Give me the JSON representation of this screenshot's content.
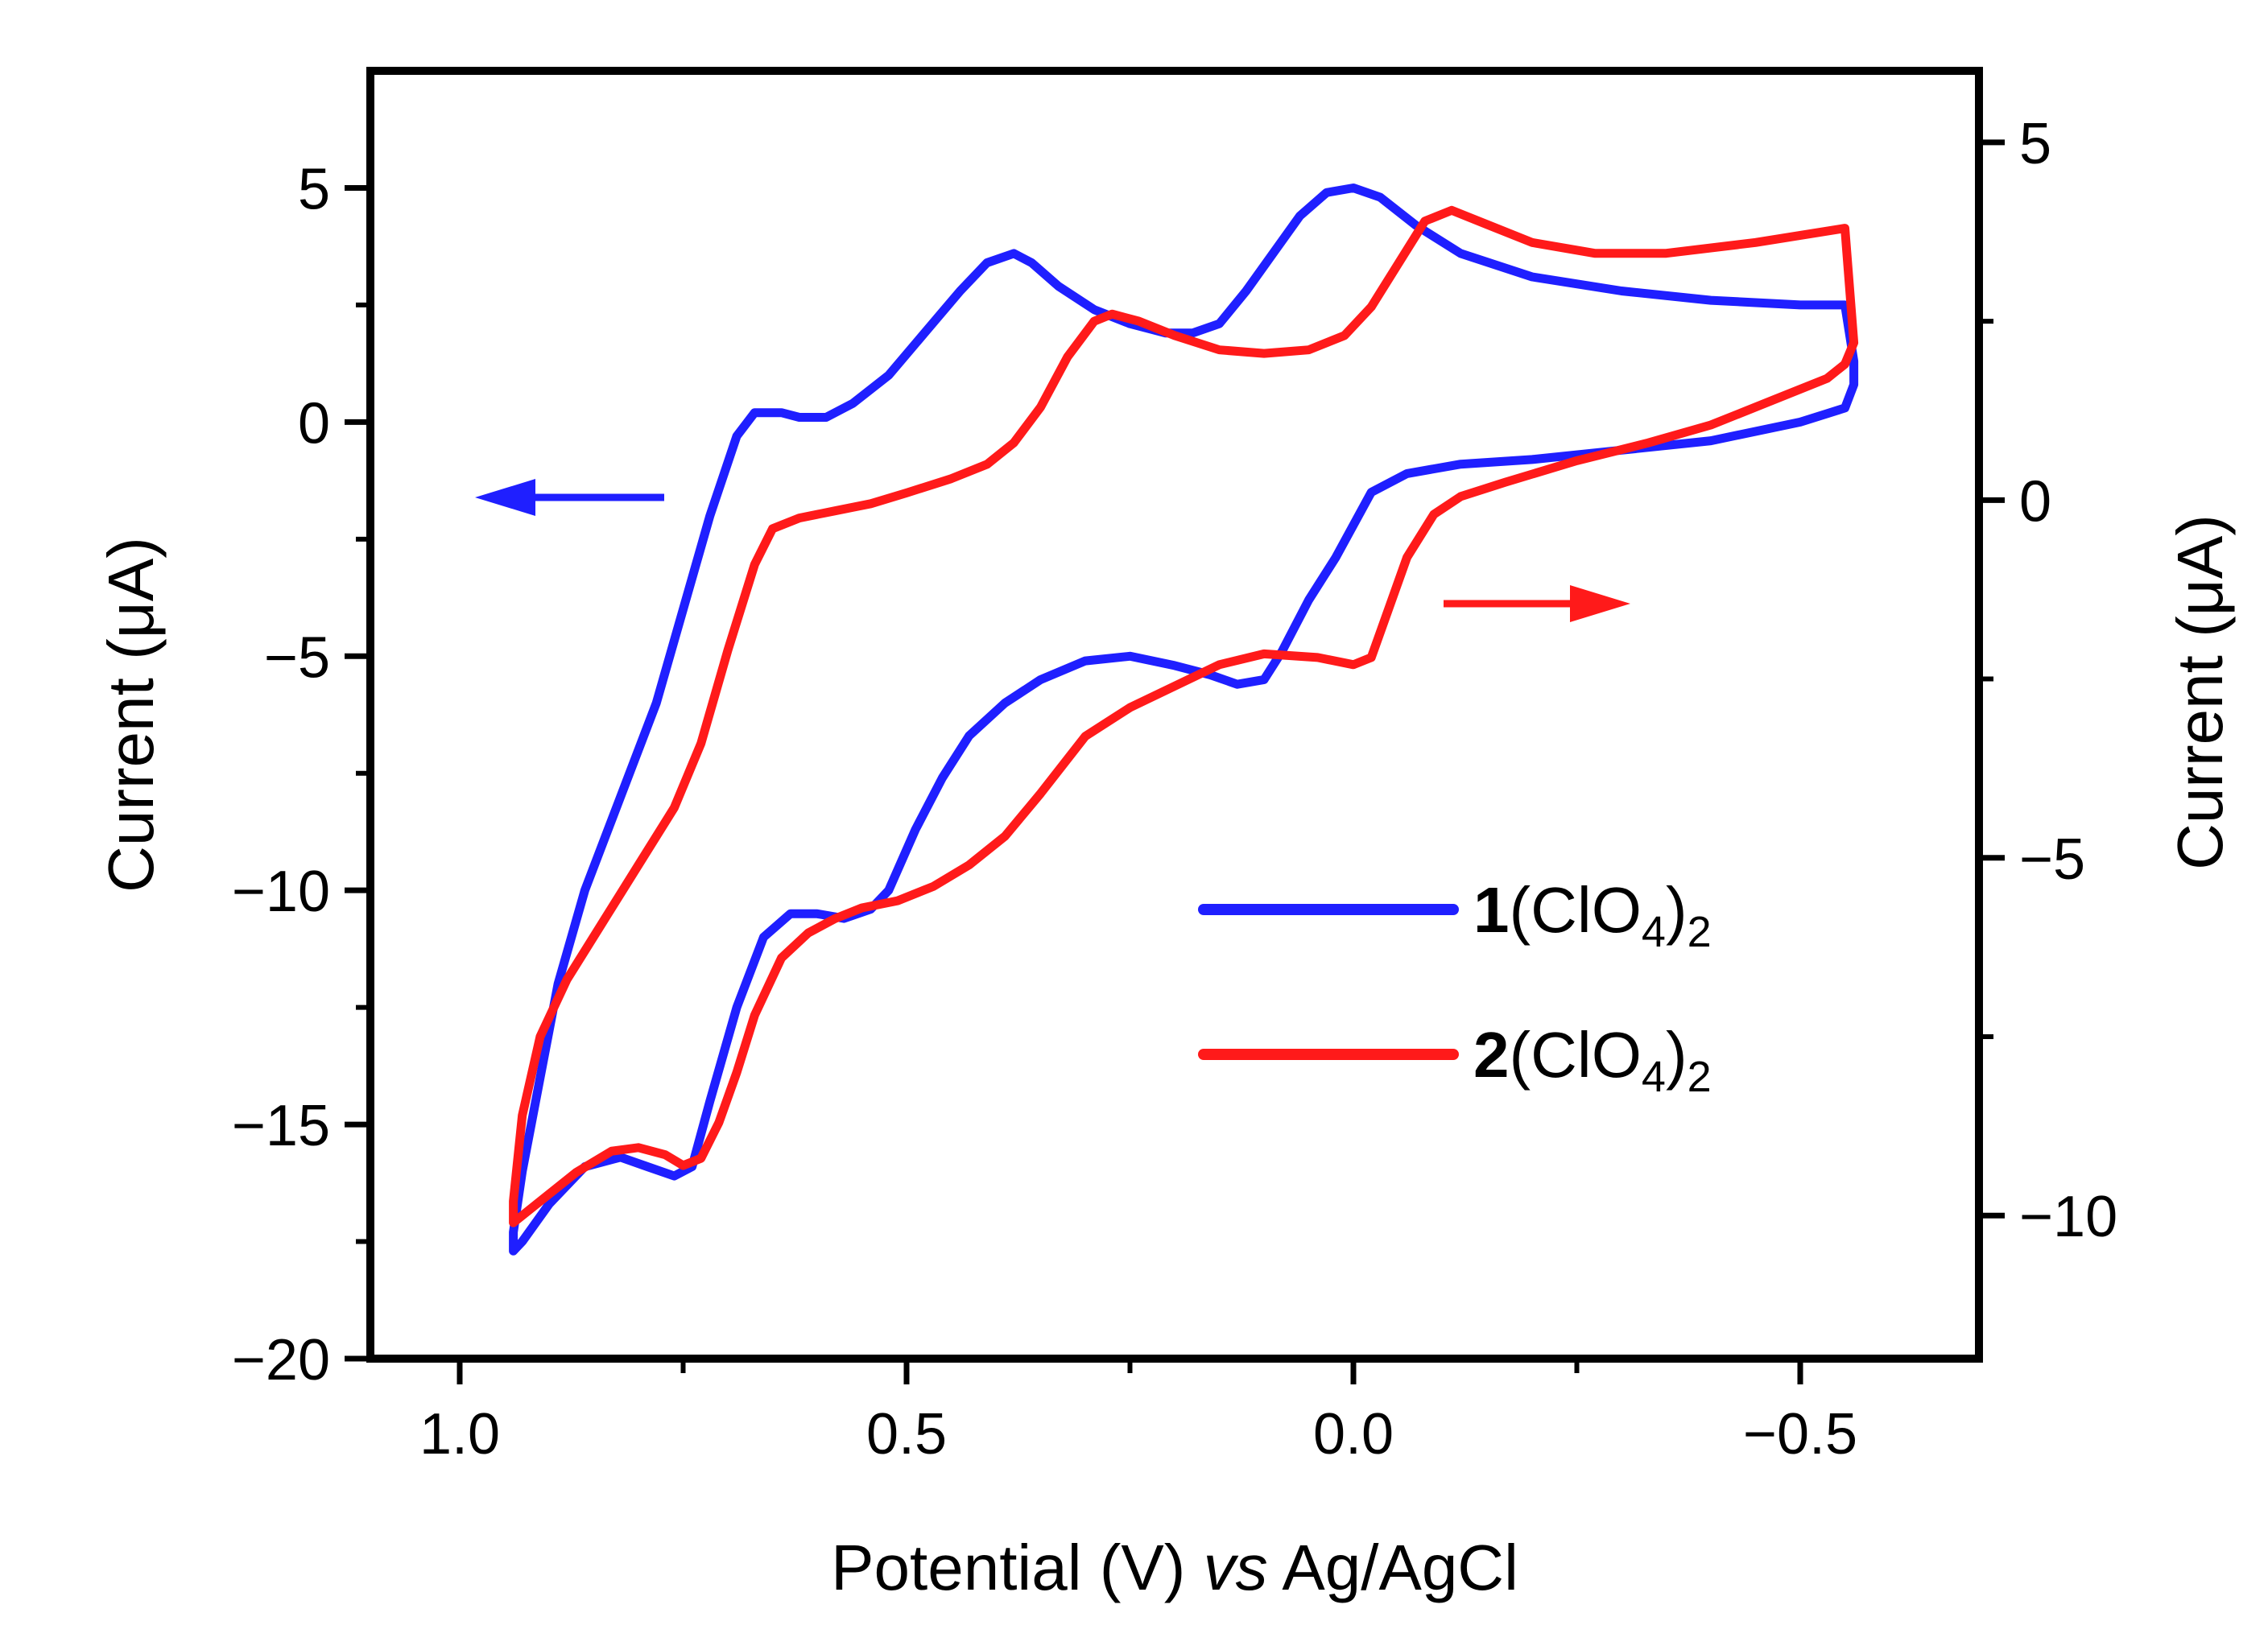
{
  "chart_data": {
    "type": "line",
    "title": "",
    "xlabel": {
      "prefix": "Potential (V) ",
      "italic": "vs",
      "suffix": " Ag/AgCl"
    },
    "ylabel_left": "Current (μA)",
    "ylabel_right": "Current (μA)",
    "x_axis": {
      "min": 1.1,
      "max": -0.7,
      "reversed": true,
      "major_ticks": [
        1.0,
        0.5,
        0.0,
        -0.5
      ],
      "tick_labels": [
        "1.0",
        "0.5",
        "0.0",
        "−0.5"
      ],
      "minor_ticks": [
        0.75,
        0.25,
        -0.25
      ]
    },
    "y_left": {
      "min": -20,
      "max": 7.5,
      "major_ticks": [
        5,
        0,
        -5,
        -10,
        -15,
        -20
      ],
      "tick_labels": [
        "5",
        "0",
        "−5",
        "−10",
        "−15",
        "−20"
      ],
      "minor_ticks": [
        2.5,
        -2.5,
        -7.5,
        -12.5,
        -17.5
      ]
    },
    "y_right": {
      "min": -12,
      "max": 6,
      "major_ticks": [
        5,
        0,
        -5,
        -10
      ],
      "tick_labels": [
        "5",
        "0",
        "−5",
        "−10"
      ],
      "minor_ticks": [
        2.5,
        -2.5,
        -7.5
      ]
    },
    "legend": {
      "placement": "lower-right inside"
    },
    "arrows": [
      {
        "series": "1(ClO4)2",
        "direction": "left",
        "meaning": "left axis",
        "color": "#1f1fff"
      },
      {
        "series": "2(ClO4)2",
        "direction": "right",
        "meaning": "right axis",
        "color": "#ff1a1a"
      }
    ],
    "series": [
      {
        "name": "1(ClO4)2",
        "label_bold": "1",
        "label_rest": "(ClO",
        "label_sub1": "4",
        "label_close": ")",
        "label_sub2": "2",
        "axis": "left",
        "color": "#1f1fff",
        "points": [
          [
            0.94,
            -17.7
          ],
          [
            0.94,
            -17.3
          ],
          [
            0.93,
            -16.0
          ],
          [
            0.91,
            -14.0
          ],
          [
            0.89,
            -12.0
          ],
          [
            0.86,
            -10.0
          ],
          [
            0.82,
            -8.0
          ],
          [
            0.78,
            -6.0
          ],
          [
            0.75,
            -4.0
          ],
          [
            0.72,
            -2.0
          ],
          [
            0.69,
            -0.3
          ],
          [
            0.67,
            0.2
          ],
          [
            0.64,
            0.2
          ],
          [
            0.62,
            0.1
          ],
          [
            0.59,
            0.1
          ],
          [
            0.56,
            0.4
          ],
          [
            0.52,
            1.0
          ],
          [
            0.48,
            1.9
          ],
          [
            0.44,
            2.8
          ],
          [
            0.41,
            3.4
          ],
          [
            0.38,
            3.6
          ],
          [
            0.36,
            3.4
          ],
          [
            0.33,
            2.9
          ],
          [
            0.29,
            2.4
          ],
          [
            0.25,
            2.1
          ],
          [
            0.21,
            1.9
          ],
          [
            0.18,
            1.9
          ],
          [
            0.15,
            2.1
          ],
          [
            0.12,
            2.8
          ],
          [
            0.09,
            3.6
          ],
          [
            0.06,
            4.4
          ],
          [
            0.03,
            4.9
          ],
          [
            0.0,
            5.0
          ],
          [
            -0.03,
            4.8
          ],
          [
            -0.07,
            4.2
          ],
          [
            -0.12,
            3.6
          ],
          [
            -0.2,
            3.1
          ],
          [
            -0.3,
            2.8
          ],
          [
            -0.4,
            2.6
          ],
          [
            -0.5,
            2.5
          ],
          [
            -0.55,
            2.5
          ],
          [
            -0.56,
            1.3
          ],
          [
            -0.56,
            0.8
          ],
          [
            -0.55,
            0.3
          ],
          [
            -0.5,
            0.0
          ],
          [
            -0.4,
            -0.4
          ],
          [
            -0.3,
            -0.6
          ],
          [
            -0.2,
            -0.8
          ],
          [
            -0.12,
            -0.9
          ],
          [
            -0.06,
            -1.1
          ],
          [
            -0.02,
            -1.5
          ],
          [
            0.0,
            -2.2
          ],
          [
            0.02,
            -2.9
          ],
          [
            0.05,
            -3.8
          ],
          [
            0.08,
            -4.9
          ],
          [
            0.1,
            -5.5
          ],
          [
            0.13,
            -5.6
          ],
          [
            0.16,
            -5.4
          ],
          [
            0.2,
            -5.2
          ],
          [
            0.25,
            -5.0
          ],
          [
            0.3,
            -5.1
          ],
          [
            0.35,
            -5.5
          ],
          [
            0.39,
            -6.0
          ],
          [
            0.43,
            -6.7
          ],
          [
            0.46,
            -7.6
          ],
          [
            0.49,
            -8.7
          ],
          [
            0.52,
            -10.0
          ],
          [
            0.54,
            -10.4
          ],
          [
            0.57,
            -10.6
          ],
          [
            0.6,
            -10.5
          ],
          [
            0.63,
            -10.5
          ],
          [
            0.66,
            -11.0
          ],
          [
            0.69,
            -12.5
          ],
          [
            0.72,
            -14.5
          ],
          [
            0.74,
            -15.9
          ],
          [
            0.76,
            -16.1
          ],
          [
            0.79,
            -15.9
          ],
          [
            0.82,
            -15.7
          ],
          [
            0.86,
            -15.9
          ],
          [
            0.9,
            -16.7
          ],
          [
            0.93,
            -17.5
          ],
          [
            0.94,
            -17.7
          ]
        ]
      },
      {
        "name": "2(ClO4)2",
        "label_bold": "2",
        "label_rest": "(ClO",
        "label_sub1": "4",
        "label_close": ")",
        "label_sub2": "2",
        "axis": "right",
        "color": "#ff1a1a",
        "points": [
          [
            0.94,
            -10.1
          ],
          [
            0.94,
            -9.8
          ],
          [
            0.93,
            -8.6
          ],
          [
            0.91,
            -7.5
          ],
          [
            0.88,
            -6.7
          ],
          [
            0.84,
            -5.9
          ],
          [
            0.8,
            -5.1
          ],
          [
            0.76,
            -4.3
          ],
          [
            0.73,
            -3.4
          ],
          [
            0.7,
            -2.1
          ],
          [
            0.67,
            -0.9
          ],
          [
            0.65,
            -0.4
          ],
          [
            0.62,
            -0.25
          ],
          [
            0.58,
            -0.15
          ],
          [
            0.54,
            -0.05
          ],
          [
            0.5,
            0.1
          ],
          [
            0.45,
            0.3
          ],
          [
            0.41,
            0.5
          ],
          [
            0.38,
            0.8
          ],
          [
            0.35,
            1.3
          ],
          [
            0.32,
            2.0
          ],
          [
            0.29,
            2.5
          ],
          [
            0.27,
            2.6
          ],
          [
            0.24,
            2.5
          ],
          [
            0.2,
            2.3
          ],
          [
            0.15,
            2.1
          ],
          [
            0.1,
            2.05
          ],
          [
            0.05,
            2.1
          ],
          [
            0.01,
            2.3
          ],
          [
            -0.02,
            2.7
          ],
          [
            -0.05,
            3.3
          ],
          [
            -0.08,
            3.9
          ],
          [
            -0.11,
            4.05
          ],
          [
            -0.15,
            3.85
          ],
          [
            -0.2,
            3.6
          ],
          [
            -0.27,
            3.45
          ],
          [
            -0.35,
            3.45
          ],
          [
            -0.45,
            3.6
          ],
          [
            -0.55,
            3.8
          ],
          [
            -0.56,
            2.2
          ],
          [
            -0.55,
            1.9
          ],
          [
            -0.53,
            1.7
          ],
          [
            -0.47,
            1.4
          ],
          [
            -0.4,
            1.05
          ],
          [
            -0.33,
            0.8
          ],
          [
            -0.25,
            0.55
          ],
          [
            -0.17,
            0.25
          ],
          [
            -0.12,
            0.05
          ],
          [
            -0.09,
            -0.2
          ],
          [
            -0.06,
            -0.8
          ],
          [
            -0.04,
            -1.5
          ],
          [
            -0.02,
            -2.2
          ],
          [
            0.0,
            -2.3
          ],
          [
            0.04,
            -2.2
          ],
          [
            0.1,
            -2.15
          ],
          [
            0.15,
            -2.3
          ],
          [
            0.2,
            -2.6
          ],
          [
            0.25,
            -2.9
          ],
          [
            0.3,
            -3.3
          ],
          [
            0.35,
            -4.1
          ],
          [
            0.39,
            -4.7
          ],
          [
            0.43,
            -5.1
          ],
          [
            0.47,
            -5.4
          ],
          [
            0.51,
            -5.6
          ],
          [
            0.55,
            -5.7
          ],
          [
            0.58,
            -5.85
          ],
          [
            0.61,
            -6.05
          ],
          [
            0.64,
            -6.4
          ],
          [
            0.67,
            -7.2
          ],
          [
            0.69,
            -8.0
          ],
          [
            0.71,
            -8.7
          ],
          [
            0.73,
            -9.2
          ],
          [
            0.75,
            -9.3
          ],
          [
            0.77,
            -9.15
          ],
          [
            0.8,
            -9.05
          ],
          [
            0.83,
            -9.1
          ],
          [
            0.87,
            -9.4
          ],
          [
            0.91,
            -9.8
          ],
          [
            0.94,
            -10.1
          ]
        ]
      }
    ]
  }
}
